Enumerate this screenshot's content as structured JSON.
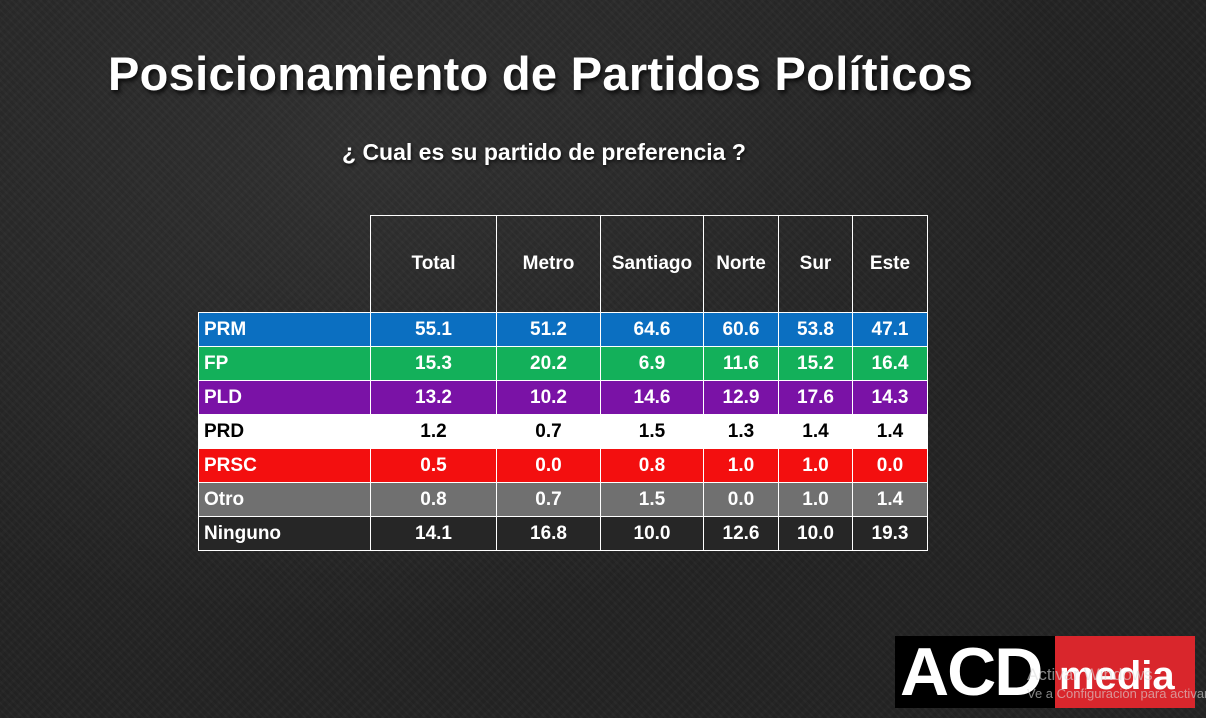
{
  "slide": {
    "title": "Posicionamiento de Partidos Políticos",
    "subtitle": "¿ Cual es su partido de preferencia ?"
  },
  "table": {
    "headers": [
      "Total",
      "Metro",
      "Santiago",
      "Norte",
      "Sur",
      "Este"
    ],
    "rows": [
      {
        "party": "PRM",
        "color": "#0b6fc1",
        "values": [
          "55.1",
          "51.2",
          "64.6",
          "60.6",
          "53.8",
          "47.1"
        ]
      },
      {
        "party": "FP",
        "color": "#13b05a",
        "values": [
          "15.3",
          "20.2",
          "6.9",
          "11.6",
          "15.2",
          "16.4"
        ]
      },
      {
        "party": "PLD",
        "color": "#7a12a6",
        "values": [
          "13.2",
          "10.2",
          "14.6",
          "12.9",
          "17.6",
          "14.3"
        ]
      },
      {
        "party": "PRD",
        "color": "#ffffff",
        "values": [
          "1.2",
          "0.7",
          "1.5",
          "1.3",
          "1.4",
          "1.4"
        ]
      },
      {
        "party": "PRSC",
        "color": "#f30f0f",
        "values": [
          "0.5",
          "0.0",
          "0.8",
          "1.0",
          "1.0",
          "0.0"
        ]
      },
      {
        "party": "Otro",
        "color": "#707070",
        "values": [
          "0.8",
          "0.7",
          "1.5",
          "0.0",
          "1.0",
          "1.4"
        ]
      },
      {
        "party": "Ninguno",
        "color": "#262626",
        "values": [
          "14.1",
          "16.8",
          "10.0",
          "12.6",
          "10.0",
          "19.3"
        ]
      }
    ]
  },
  "logo": {
    "acd": "ACD",
    "media": "media"
  },
  "watermark": {
    "line1": "Activar Windows",
    "line2": "Ve a Configuración para activar Windows."
  }
}
